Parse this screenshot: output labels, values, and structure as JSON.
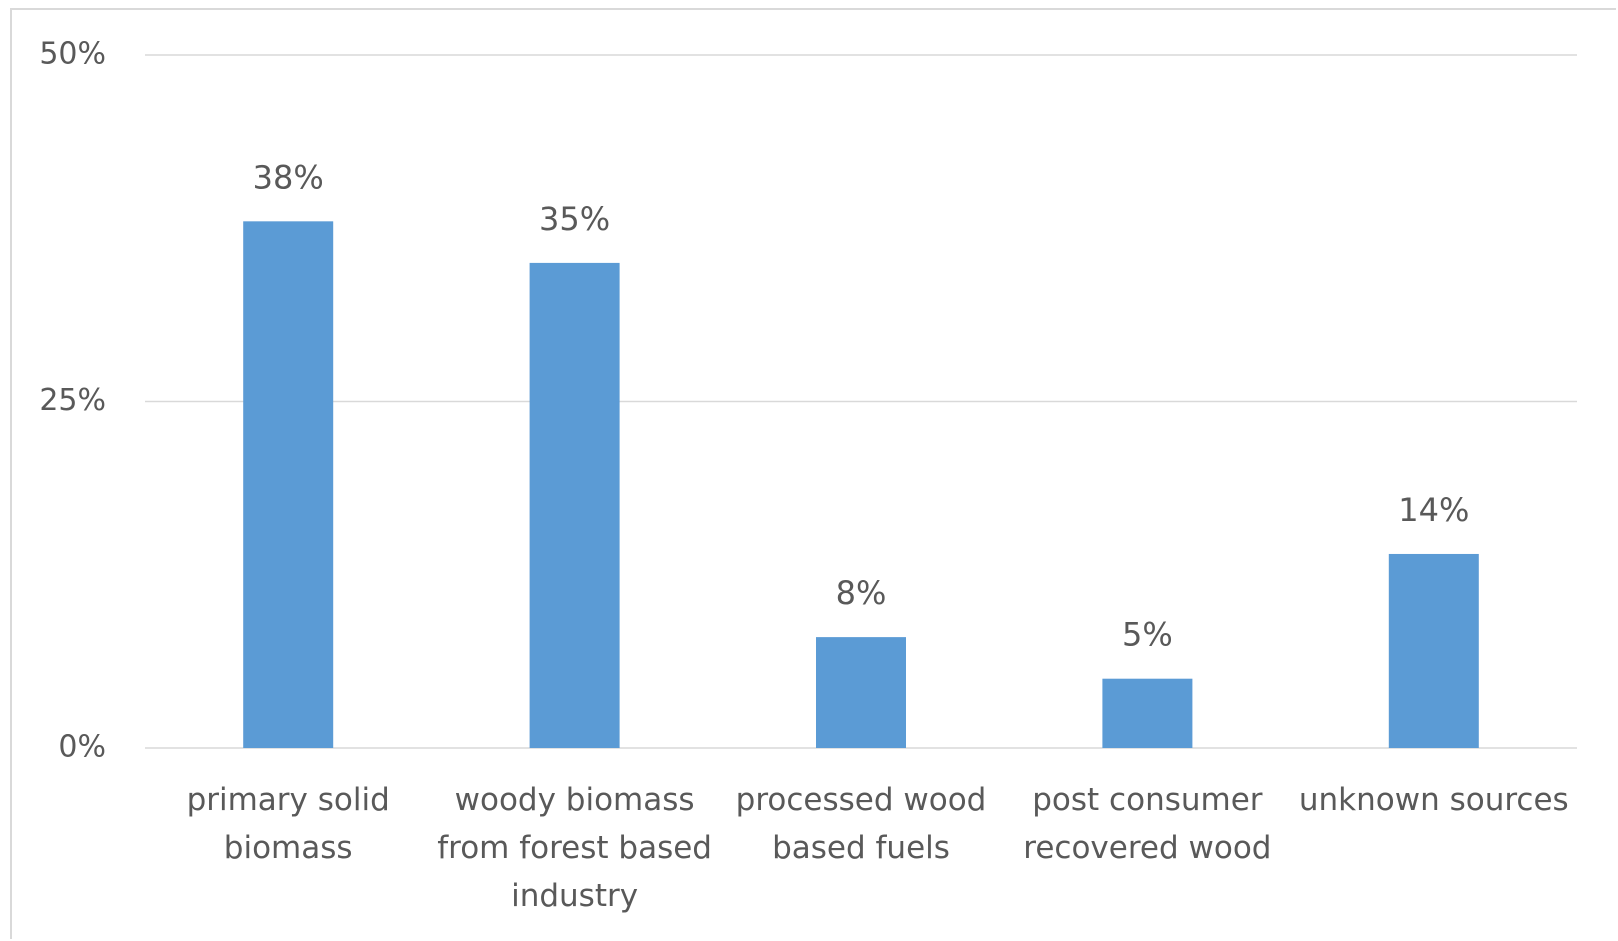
{
  "chart_data": {
    "type": "bar",
    "categories": [
      "primary solid biomass",
      "woody biomass from forest based industry",
      "processed wood based fuels",
      "post consumer recovered wood",
      "unknown sources"
    ],
    "values": [
      38,
      35,
      8,
      5,
      14
    ],
    "value_labels": [
      "38%",
      "35%",
      "8%",
      "5%",
      "14%"
    ],
    "color": "#5b9bd5",
    "ylim": [
      0,
      50
    ],
    "yticks": [
      {
        "value": 0,
        "label": "0%"
      },
      {
        "value": 25,
        "label": "25%"
      },
      {
        "value": 50,
        "label": "50%"
      }
    ],
    "grid": true
  }
}
